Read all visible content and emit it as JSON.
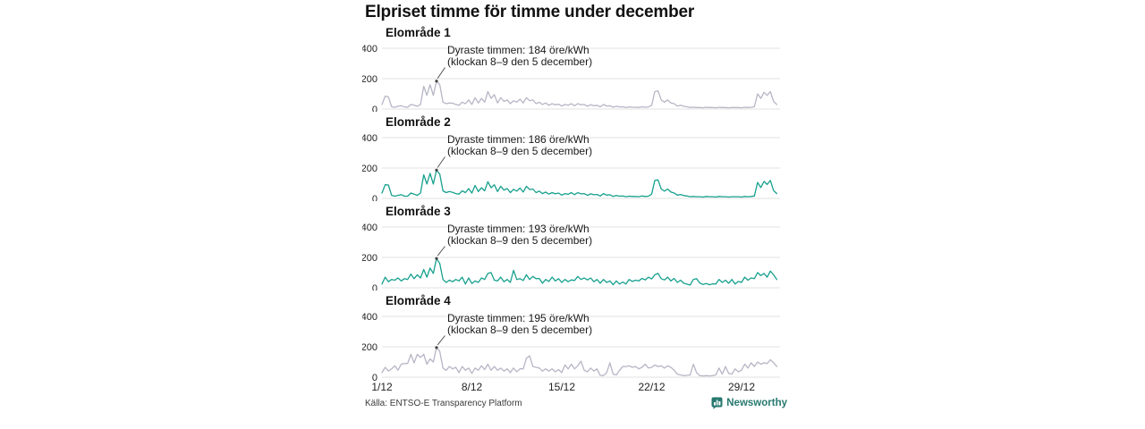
{
  "title": "Elpriset timme för timme under december",
  "footer": {
    "source": "Källa: ENTSO-E Transparency Platform",
    "brand": "Newsworthy",
    "brand_color": "#27796f",
    "brand_icon": "bar-chart-speech-bubble-icon"
  },
  "chart_data": {
    "type": "line",
    "title": "Elpriset timme för timme under december",
    "layout": "small-multiples, 4 stacked panels, shared axes",
    "x_unit": "date in December",
    "x_tick_labels": [
      "1/12",
      "8/12",
      "15/12",
      "22/12",
      "29/12"
    ],
    "x_tick_days": [
      1,
      8,
      15,
      22,
      29
    ],
    "x_range_days": [
      1,
      31
    ],
    "points_per_day": 4,
    "y_unit": "öre/kWh",
    "ylim": [
      0,
      400
    ],
    "y_ticks": [
      400,
      200,
      0
    ],
    "grid": "horizontal gridlines at 0, 200, 400",
    "colors": {
      "gray_series": "#b6b6c6",
      "teal_series": "#17a08e",
      "gridline": "#e2e2e2"
    },
    "series": [
      {
        "name": "Elområde 1",
        "color": "#b6b6c6",
        "peak": {
          "value": 184,
          "day": 5,
          "hour": "8–9",
          "label_line1": "Dyraste timmen: 184 öre/kWh",
          "label_line2": "(klockan 8–9 den 5 december)"
        },
        "values": [
          30,
          85,
          80,
          15,
          12,
          18,
          22,
          14,
          12,
          30,
          25,
          18,
          30,
          150,
          90,
          160,
          90,
          184,
          160,
          45,
          35,
          40,
          38,
          30,
          25,
          45,
          35,
          60,
          30,
          75,
          40,
          70,
          45,
          115,
          70,
          95,
          40,
          75,
          50,
          60,
          35,
          55,
          45,
          65,
          40,
          75,
          55,
          60,
          35,
          45,
          30,
          40,
          25,
          35,
          28,
          32,
          20,
          30,
          25,
          35,
          22,
          35,
          28,
          30,
          18,
          28,
          22,
          25,
          15,
          30,
          20,
          22,
          12,
          18,
          14,
          15,
          10,
          14,
          12,
          12,
          10,
          15,
          12,
          14,
          25,
          115,
          120,
          60,
          45,
          60,
          40,
          35,
          20,
          25,
          18,
          15,
          10,
          12,
          10,
          10,
          8,
          12,
          10,
          10,
          8,
          12,
          10,
          10,
          8,
          10,
          10,
          10,
          8,
          12,
          10,
          12,
          15,
          100,
          70,
          110,
          90,
          115,
          50,
          30
        ]
      },
      {
        "name": "Elområde 2",
        "color": "#17a08e",
        "peak": {
          "value": 186,
          "day": 5,
          "hour": "8–9",
          "label_line1": "Dyraste timmen: 186 öre/kWh",
          "label_line2": "(klockan 8–9 den 5 december)"
        },
        "values": [
          35,
          90,
          88,
          20,
          15,
          20,
          25,
          15,
          15,
          35,
          28,
          20,
          35,
          155,
          95,
          165,
          95,
          186,
          160,
          50,
          38,
          45,
          40,
          32,
          28,
          50,
          38,
          65,
          35,
          85,
          45,
          70,
          50,
          110,
          70,
          90,
          45,
          80,
          55,
          65,
          38,
          60,
          48,
          68,
          42,
          80,
          58,
          62,
          38,
          48,
          32,
          42,
          28,
          38,
          30,
          35,
          22,
          32,
          27,
          38,
          25,
          38,
          30,
          32,
          20,
          30,
          24,
          26,
          16,
          32,
          22,
          24,
          13,
          19,
          15,
          16,
          11,
          15,
          13,
          13,
          11,
          16,
          13,
          15,
          28,
          118,
          122,
          62,
          48,
          62,
          42,
          36,
          22,
          26,
          19,
          16,
          11,
          13,
          11,
          11,
          9,
          13,
          11,
          11,
          9,
          13,
          11,
          11,
          9,
          11,
          11,
          11,
          9,
          13,
          11,
          13,
          16,
          105,
          72,
          112,
          92,
          118,
          52,
          32
        ]
      },
      {
        "name": "Elområde 3",
        "color": "#17a08e",
        "peak": {
          "value": 193,
          "day": 5,
          "hour": "8–9",
          "label_line1": "Dyraste timmen: 193 öre/kWh",
          "label_line2": "(klockan 8–9 den 5 december)"
        },
        "values": [
          25,
          70,
          40,
          55,
          50,
          65,
          45,
          60,
          55,
          90,
          60,
          85,
          65,
          120,
          70,
          130,
          95,
          193,
          160,
          55,
          35,
          50,
          40,
          55,
          45,
          70,
          25,
          65,
          28,
          45,
          35,
          65,
          55,
          95,
          100,
          50,
          45,
          70,
          40,
          55,
          35,
          115,
          55,
          60,
          48,
          85,
          55,
          75,
          60,
          62,
          30,
          55,
          42,
          70,
          45,
          60,
          35,
          55,
          40,
          52,
          48,
          75,
          55,
          65,
          52,
          65,
          40,
          55,
          30,
          55,
          35,
          45,
          20,
          45,
          25,
          38,
          25,
          55,
          42,
          50,
          45,
          62,
          52,
          70,
          58,
          85,
          95,
          60,
          52,
          70,
          45,
          62,
          35,
          50,
          30,
          24,
          18,
          55,
          60,
          32,
          22,
          28,
          20,
          26,
          25,
          55,
          35,
          50,
          30,
          55,
          25,
          42,
          35,
          70,
          50,
          65,
          60,
          100,
          80,
          95,
          70,
          110,
          85,
          55
        ]
      },
      {
        "name": "Elområde 4",
        "color": "#b6b6c6",
        "peak": {
          "value": 195,
          "day": 5,
          "hour": "8–9",
          "label_line1": "Dyraste timmen: 195 öre/kWh",
          "label_line2": "(klockan 8–9 den 5 december)"
        },
        "values": [
          30,
          65,
          40,
          55,
          75,
          45,
          85,
          90,
          90,
          150,
          95,
          150,
          130,
          150,
          85,
          120,
          100,
          195,
          170,
          60,
          45,
          70,
          55,
          65,
          30,
          70,
          45,
          60,
          25,
          60,
          45,
          75,
          50,
          85,
          45,
          70,
          45,
          60,
          40,
          55,
          30,
          60,
          35,
          55,
          55,
          125,
          140,
          70,
          65,
          60,
          40,
          55,
          40,
          55,
          35,
          50,
          30,
          80,
          55,
          85,
          55,
          75,
          105,
          45,
          35,
          60,
          40,
          55,
          12,
          10,
          30,
          95,
          20,
          15,
          45,
          70,
          70,
          75,
          65,
          70,
          55,
          65,
          85,
          60,
          65,
          80,
          70,
          75,
          60,
          75,
          65,
          45,
          20,
          15,
          10,
          12,
          15,
          85,
          30,
          10,
          8,
          10,
          8,
          10,
          15,
          60,
          20,
          70,
          25,
          20,
          55,
          35,
          45,
          85,
          60,
          95,
          70,
          100,
          85,
          95,
          90,
          115,
          95,
          70
        ]
      }
    ]
  }
}
